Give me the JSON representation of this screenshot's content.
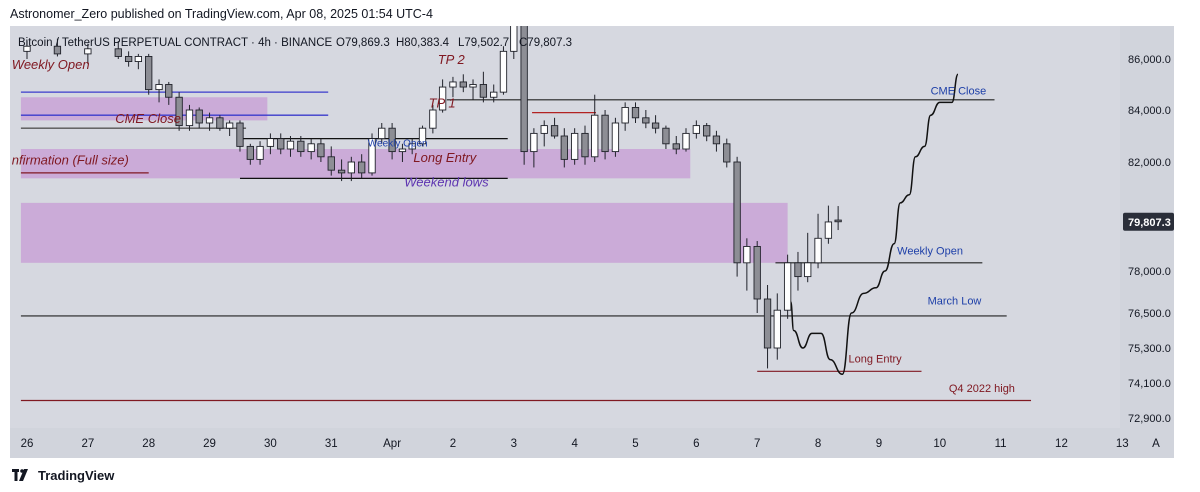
{
  "header": {
    "publisher_line": "Astronomer_Zero published on TradingView.com, Apr 08, 2025 01:54 UTC-4"
  },
  "chart_info": {
    "symbol": "Bitcoin / TetherUS PERPETUAL CONTRACT · 4h · BINANCE",
    "open": "O79,869.3",
    "high": "H80,383.4",
    "low": "L79,502.7",
    "close": "C79,807.3"
  },
  "footer": {
    "brand": "TradingView"
  },
  "colors": {
    "background": "#d1d4dc",
    "plot_background": "#d6d8e0",
    "zone": "#c9a3d6",
    "candle_up": "#ffffff",
    "candle_down": "#8d8e95",
    "candle_outline": "#20222a",
    "annotation_text": "#801922",
    "blue_text": "#1d3fa8",
    "purple_text": "#5e35b1",
    "price_badge": "#2a2e39"
  },
  "chart_data": {
    "type": "candlestick",
    "interval": "4h",
    "x_axis": {
      "labels": [
        "26",
        "27",
        "28",
        "29",
        "30",
        "31",
        "Apr",
        "2",
        "3",
        "4",
        "5",
        "6",
        "7",
        "8",
        "9",
        "10",
        "11",
        "12",
        "13"
      ]
    },
    "y_axis": {
      "ticks": [
        "86,000.0",
        "84,000.0",
        "82,000.0",
        "78,000.0",
        "76,500.0",
        "75,300.0",
        "74,100.0",
        "72,900.0"
      ],
      "tick_values": [
        86000,
        84000,
        82000,
        78000,
        76500,
        75300,
        74100,
        72900
      ],
      "current_price_label": "79,807.3",
      "current_price": 79807.3,
      "auto_scale_button": "A"
    },
    "candles": [
      {
        "d": 0.0,
        "o": 86300,
        "h": 86700,
        "l": 86000,
        "c": 86500
      },
      {
        "d": 0.5,
        "o": 86500,
        "h": 86800,
        "l": 86100,
        "c": 86200
      },
      {
        "d": 1.0,
        "o": 86200,
        "h": 86600,
        "l": 85800,
        "c": 86400
      },
      {
        "d": 1.5,
        "o": 86400,
        "h": 86700,
        "l": 86000,
        "c": 86100
      },
      {
        "d": 1.67,
        "o": 86100,
        "h": 86300,
        "l": 85700,
        "c": 85900
      },
      {
        "d": 1.83,
        "o": 85900,
        "h": 86200,
        "l": 85600,
        "c": 86100
      },
      {
        "d": 2.0,
        "o": 86100,
        "h": 86200,
        "l": 84600,
        "c": 84800
      },
      {
        "d": 2.17,
        "o": 84800,
        "h": 85200,
        "l": 84300,
        "c": 85000
      },
      {
        "d": 2.33,
        "o": 85000,
        "h": 85100,
        "l": 84200,
        "c": 84500
      },
      {
        "d": 2.5,
        "o": 84500,
        "h": 84700,
        "l": 83200,
        "c": 83400
      },
      {
        "d": 2.67,
        "o": 83400,
        "h": 84200,
        "l": 83200,
        "c": 84000
      },
      {
        "d": 2.83,
        "o": 84000,
        "h": 84100,
        "l": 83300,
        "c": 83500
      },
      {
        "d": 3.0,
        "o": 83500,
        "h": 83900,
        "l": 83200,
        "c": 83700
      },
      {
        "d": 3.17,
        "o": 83700,
        "h": 83800,
        "l": 83200,
        "c": 83300
      },
      {
        "d": 3.33,
        "o": 83300,
        "h": 83600,
        "l": 83000,
        "c": 83500
      },
      {
        "d": 3.5,
        "o": 83500,
        "h": 83600,
        "l": 82400,
        "c": 82600
      },
      {
        "d": 3.67,
        "o": 82600,
        "h": 82700,
        "l": 81900,
        "c": 82100
      },
      {
        "d": 3.83,
        "o": 82100,
        "h": 82800,
        "l": 81900,
        "c": 82600
      },
      {
        "d": 4.0,
        "o": 82600,
        "h": 83100,
        "l": 82300,
        "c": 82900
      },
      {
        "d": 4.17,
        "o": 82900,
        "h": 83100,
        "l": 82300,
        "c": 82500
      },
      {
        "d": 4.33,
        "o": 82500,
        "h": 83000,
        "l": 82200,
        "c": 82800
      },
      {
        "d": 4.5,
        "o": 82800,
        "h": 83000,
        "l": 82200,
        "c": 82400
      },
      {
        "d": 4.67,
        "o": 82400,
        "h": 82900,
        "l": 82100,
        "c": 82700
      },
      {
        "d": 4.83,
        "o": 82700,
        "h": 82900,
        "l": 82000,
        "c": 82200
      },
      {
        "d": 5.0,
        "o": 82200,
        "h": 82600,
        "l": 81500,
        "c": 81700
      },
      {
        "d": 5.17,
        "o": 81700,
        "h": 82100,
        "l": 81300,
        "c": 81600
      },
      {
        "d": 5.33,
        "o": 81600,
        "h": 82200,
        "l": 81300,
        "c": 82000
      },
      {
        "d": 5.5,
        "o": 82000,
        "h": 82300,
        "l": 81400,
        "c": 81600
      },
      {
        "d": 5.67,
        "o": 81600,
        "h": 83100,
        "l": 81500,
        "c": 82900
      },
      {
        "d": 5.83,
        "o": 82900,
        "h": 83500,
        "l": 82700,
        "c": 83300
      },
      {
        "d": 6.0,
        "o": 83300,
        "h": 83500,
        "l": 82100,
        "c": 82400
      },
      {
        "d": 6.17,
        "o": 82400,
        "h": 82700,
        "l": 82000,
        "c": 82500
      },
      {
        "d": 6.33,
        "o": 82500,
        "h": 82900,
        "l": 82300,
        "c": 82700
      },
      {
        "d": 6.5,
        "o": 82700,
        "h": 83400,
        "l": 82600,
        "c": 83300
      },
      {
        "d": 6.67,
        "o": 83300,
        "h": 84200,
        "l": 83100,
        "c": 84000
      },
      {
        "d": 6.83,
        "o": 84000,
        "h": 85200,
        "l": 83900,
        "c": 84900
      },
      {
        "d": 7.0,
        "o": 84900,
        "h": 85300,
        "l": 84500,
        "c": 85100
      },
      {
        "d": 7.17,
        "o": 85100,
        "h": 85400,
        "l": 84700,
        "c": 84900
      },
      {
        "d": 7.33,
        "o": 84900,
        "h": 85200,
        "l": 84400,
        "c": 85000
      },
      {
        "d": 7.5,
        "o": 85000,
        "h": 85500,
        "l": 84300,
        "c": 84500
      },
      {
        "d": 7.67,
        "o": 84500,
        "h": 85000,
        "l": 84300,
        "c": 84700
      },
      {
        "d": 7.83,
        "o": 84700,
        "h": 86500,
        "l": 84600,
        "c": 86300
      },
      {
        "d": 8.0,
        "o": 86300,
        "h": 88200,
        "l": 86000,
        "c": 87500
      },
      {
        "d": 8.17,
        "o": 87500,
        "h": 88000,
        "l": 81900,
        "c": 82400
      },
      {
        "d": 8.33,
        "o": 82400,
        "h": 83300,
        "l": 81800,
        "c": 83100
      },
      {
        "d": 8.5,
        "o": 83100,
        "h": 83600,
        "l": 82600,
        "c": 83400
      },
      {
        "d": 8.67,
        "o": 83400,
        "h": 83700,
        "l": 82900,
        "c": 83000
      },
      {
        "d": 8.83,
        "o": 83000,
        "h": 83300,
        "l": 81800,
        "c": 82100
      },
      {
        "d": 9.0,
        "o": 82100,
        "h": 83300,
        "l": 81900,
        "c": 83100
      },
      {
        "d": 9.17,
        "o": 83100,
        "h": 83400,
        "l": 81900,
        "c": 82200
      },
      {
        "d": 9.33,
        "o": 82200,
        "h": 84600,
        "l": 82000,
        "c": 83800
      },
      {
        "d": 9.5,
        "o": 83800,
        "h": 84000,
        "l": 82100,
        "c": 82400
      },
      {
        "d": 9.67,
        "o": 82400,
        "h": 83700,
        "l": 82200,
        "c": 83500
      },
      {
        "d": 9.83,
        "o": 83500,
        "h": 84300,
        "l": 83200,
        "c": 84100
      },
      {
        "d": 10.0,
        "o": 84100,
        "h": 84300,
        "l": 83500,
        "c": 83700
      },
      {
        "d": 10.17,
        "o": 83700,
        "h": 84000,
        "l": 83300,
        "c": 83500
      },
      {
        "d": 10.33,
        "o": 83500,
        "h": 83800,
        "l": 83100,
        "c": 83300
      },
      {
        "d": 10.5,
        "o": 83300,
        "h": 83400,
        "l": 82500,
        "c": 82700
      },
      {
        "d": 10.67,
        "o": 82700,
        "h": 83000,
        "l": 82300,
        "c": 82500
      },
      {
        "d": 10.83,
        "o": 82500,
        "h": 83300,
        "l": 82400,
        "c": 83100
      },
      {
        "d": 11.0,
        "o": 83100,
        "h": 83600,
        "l": 82900,
        "c": 83400
      },
      {
        "d": 11.17,
        "o": 83400,
        "h": 83500,
        "l": 82800,
        "c": 83000
      },
      {
        "d": 11.33,
        "o": 83000,
        "h": 83200,
        "l": 82400,
        "c": 82700
      },
      {
        "d": 11.5,
        "o": 82700,
        "h": 82900,
        "l": 81800,
        "c": 82000
      },
      {
        "d": 11.67,
        "o": 82000,
        "h": 82200,
        "l": 77800,
        "c": 78300
      },
      {
        "d": 11.83,
        "o": 78300,
        "h": 79200,
        "l": 77300,
        "c": 78900
      },
      {
        "d": 12.0,
        "o": 78900,
        "h": 79100,
        "l": 76500,
        "c": 77000
      },
      {
        "d": 12.17,
        "o": 77000,
        "h": 77500,
        "l": 74600,
        "c": 75300
      },
      {
        "d": 12.33,
        "o": 75300,
        "h": 77200,
        "l": 74900,
        "c": 76600
      },
      {
        "d": 12.5,
        "o": 76600,
        "h": 78600,
        "l": 76300,
        "c": 78300
      },
      {
        "d": 12.67,
        "o": 78300,
        "h": 78700,
        "l": 77300,
        "c": 77800
      },
      {
        "d": 12.83,
        "o": 77800,
        "h": 79400,
        "l": 77600,
        "c": 78300
      },
      {
        "d": 13.0,
        "o": 78300,
        "h": 80100,
        "l": 78100,
        "c": 79200
      },
      {
        "d": 13.17,
        "o": 79200,
        "h": 80400,
        "l": 79000,
        "c": 79800
      },
      {
        "d": 13.33,
        "o": 79869,
        "h": 80383,
        "l": 79503,
        "c": 79807
      }
    ],
    "projection_path": [
      [
        12.55,
        76900
      ],
      [
        12.6,
        75900
      ],
      [
        12.75,
        75300
      ],
      [
        12.9,
        75800
      ],
      [
        13.05,
        75800
      ],
      [
        13.2,
        74900
      ],
      [
        13.4,
        74400
      ],
      [
        13.55,
        76500
      ],
      [
        13.75,
        77200
      ],
      [
        13.95,
        77400
      ],
      [
        14.1,
        78000
      ],
      [
        14.25,
        79000
      ],
      [
        14.35,
        80500
      ],
      [
        14.5,
        80800
      ],
      [
        14.6,
        82200
      ],
      [
        14.75,
        82600
      ],
      [
        14.85,
        83800
      ],
      [
        15.0,
        84300
      ],
      [
        15.2,
        84300
      ],
      [
        15.3,
        85400
      ]
    ],
    "levels": [
      {
        "label": "CME Close",
        "price": 84400,
        "from": 6.9,
        "to": 15.9,
        "color": "#222222"
      },
      {
        "label": "Weekly Open",
        "price": 78300,
        "from": 12.3,
        "to": 15.7,
        "color": "#222222"
      },
      {
        "label": "March Low",
        "price": 76400,
        "from": -0.1,
        "to": 16.1,
        "color": "#222222"
      },
      {
        "label": "Long Entry",
        "price": 74500,
        "from": 12.0,
        "to": 14.7,
        "color": "#801922"
      },
      {
        "label": "Q4 2022 high",
        "price": 73500,
        "from": -0.1,
        "to": 16.5,
        "color": "#801922"
      }
    ],
    "left_lines": [
      {
        "price": 84700,
        "from": -0.1,
        "to": 4.95,
        "color": "#3b3bcc"
      },
      {
        "price": 83800,
        "from": -0.1,
        "to": 4.95,
        "color": "#3b3bcc"
      },
      {
        "price": 83300,
        "from": -0.1,
        "to": 3.6,
        "color": "#555555"
      },
      {
        "price": 82900,
        "from": 3.5,
        "to": 7.9,
        "color": "#111111"
      },
      {
        "price": 81600,
        "from": -0.1,
        "to": 2.0,
        "color": "#801922"
      },
      {
        "price": 81400,
        "from": 3.5,
        "to": 7.9,
        "color": "#111111"
      },
      {
        "price": 83900,
        "from": 8.3,
        "to": 9.35,
        "color": "#b22222"
      }
    ],
    "zones": [
      {
        "from": -0.1,
        "to": 3.95,
        "top": 84500,
        "bottom": 83600
      },
      {
        "from": -0.1,
        "to": 10.9,
        "top": 82500,
        "bottom": 81400
      },
      {
        "from": -0.1,
        "to": 12.5,
        "top": 80500,
        "bottom": 78300
      }
    ],
    "annotations": [
      {
        "text": "Weekly Open",
        "d": -0.25,
        "price": 85600,
        "style": "maroon-italic"
      },
      {
        "text": "CME Close",
        "d": 1.45,
        "price": 83500,
        "style": "maroon-italic"
      },
      {
        "text": "nfirmation (Full size)",
        "d": -0.25,
        "price": 81900,
        "style": "maroon-italic"
      },
      {
        "text": "TP 2",
        "d": 6.75,
        "price": 85800,
        "style": "maroon-italic"
      },
      {
        "text": "TP 1",
        "d": 6.6,
        "price": 84100,
        "style": "maroon-italic"
      },
      {
        "text": "Weekly Open",
        "d": 5.6,
        "price": 82600,
        "style": "blue-small"
      },
      {
        "text": "Long Entry",
        "d": 6.35,
        "price": 82000,
        "style": "maroon-italic"
      },
      {
        "text": "Weekend lows",
        "d": 6.2,
        "price": 81100,
        "style": "purple-italic"
      },
      {
        "text": "CME Close",
        "d": 14.85,
        "price": 84600,
        "style": "blue"
      },
      {
        "text": "Weekly Open",
        "d": 14.3,
        "price": 78600,
        "style": "blue"
      },
      {
        "text": "March Low",
        "d": 14.8,
        "price": 76800,
        "style": "blue"
      },
      {
        "text": "Long Entry",
        "d": 13.5,
        "price": 74800,
        "style": "maroon"
      },
      {
        "text": "Q4 2022 high",
        "d": 15.15,
        "price": 73800,
        "style": "maroon"
      }
    ]
  }
}
